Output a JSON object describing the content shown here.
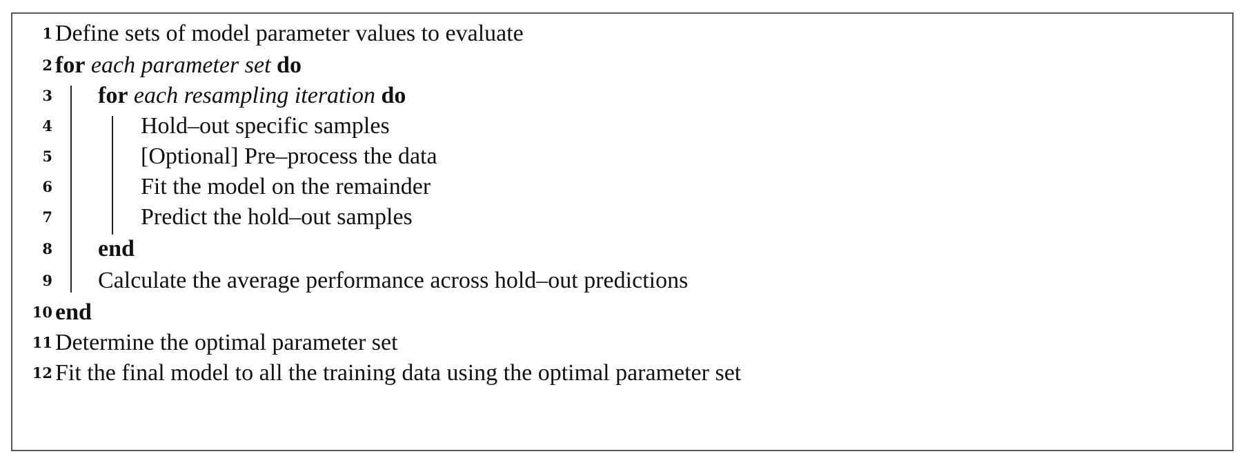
{
  "algorithm": {
    "lines": [
      {
        "num": "1",
        "text": "Define sets of model parameter values to evaluate"
      },
      {
        "num": "2",
        "kw_start": "for",
        "italic": "each parameter set",
        "kw_end": "do"
      },
      {
        "num": "3",
        "kw_start": "for",
        "italic": "each resampling iteration",
        "kw_end": "do"
      },
      {
        "num": "4",
        "text": "Hold–out specific samples"
      },
      {
        "num": "5",
        "text": "[Optional] Pre–process the data"
      },
      {
        "num": "6",
        "text": "Fit the model on the remainder"
      },
      {
        "num": "7",
        "text": "Predict the hold–out samples"
      },
      {
        "num": "8",
        "kw": "end"
      },
      {
        "num": "9",
        "text": "Calculate the average performance across hold–out predictions"
      },
      {
        "num": "10",
        "kw": "end"
      },
      {
        "num": "11",
        "text": "Determine the optimal parameter set"
      },
      {
        "num": "12",
        "text": "Fit the final model to all the training data using the optimal parameter set"
      }
    ]
  }
}
